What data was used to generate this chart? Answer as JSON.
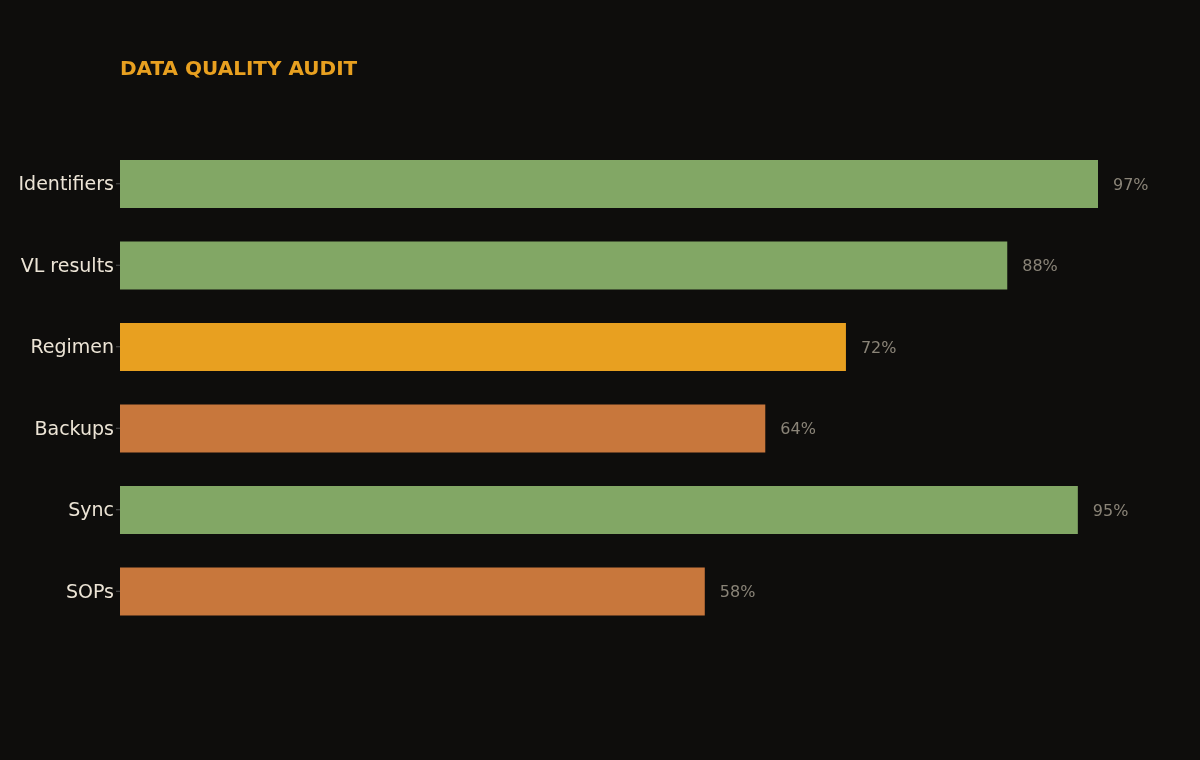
{
  "chart_data": {
    "type": "bar",
    "orientation": "horizontal",
    "title": "DATA QUALITY AUDIT",
    "categories": [
      "Identifiers",
      "VL results",
      "Regimen",
      "Backups",
      "Sync",
      "SOPs"
    ],
    "values": [
      97,
      88,
      72,
      64,
      95,
      58
    ],
    "colors": [
      "#82a765",
      "#82a765",
      "#e8a020",
      "#c8773c",
      "#82a765",
      "#c8773c"
    ],
    "value_labels": [
      "97%",
      "88%",
      "72%",
      "64%",
      "95%",
      "58%"
    ]
  }
}
